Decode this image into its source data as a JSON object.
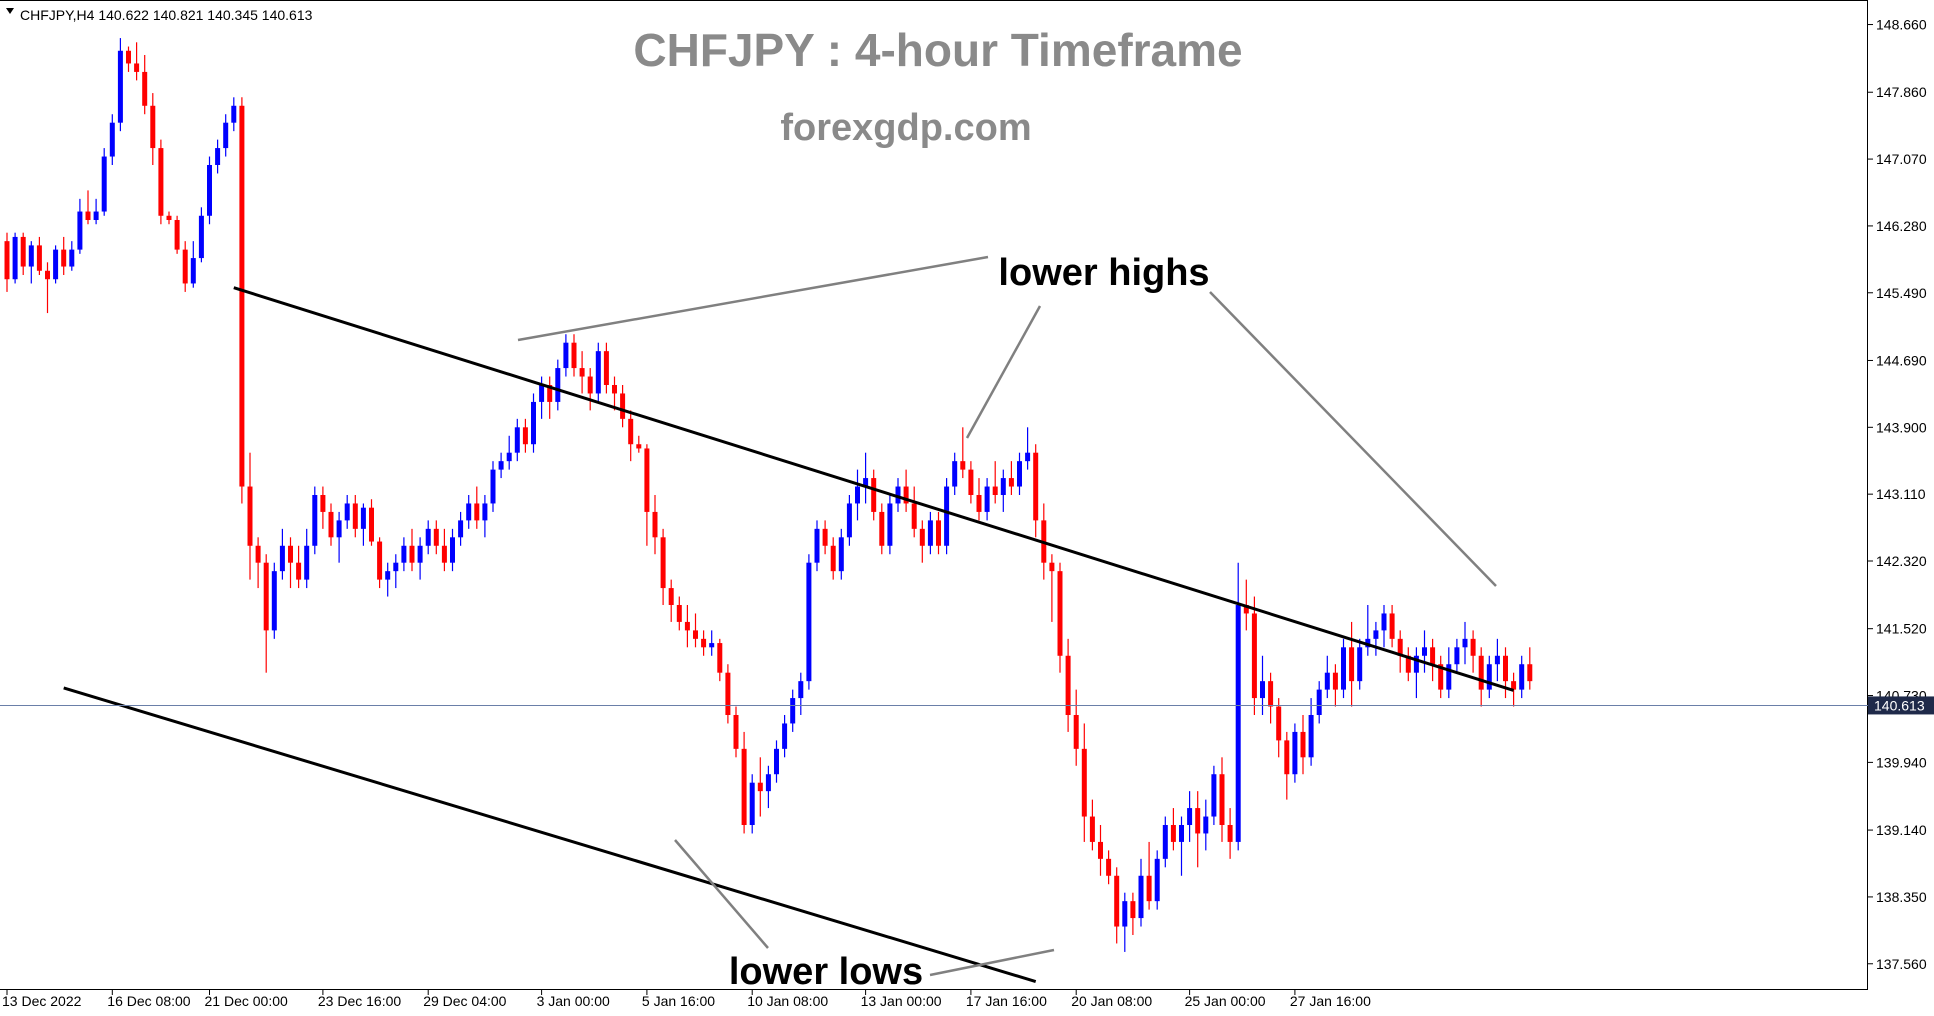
{
  "header": {
    "symbol_info": "CHFJPY,H4  140.622 140.821 140.345 140.613",
    "dropdown_icon": "triangle-down-icon"
  },
  "watermark": {
    "title": "CHFJPY : 4-hour Timeframe",
    "subtitle": "forexgdp.com"
  },
  "annotations": {
    "highs": "lower highs",
    "lows": "lower lows"
  },
  "colors": {
    "bull": "#0000ff",
    "bear": "#ff0000",
    "trendline": "#000000",
    "connector": "#808080",
    "price_line": "#6a7fa8",
    "price_label_bg": "#1f2a4a"
  },
  "chart_data": {
    "type": "candlestick",
    "title": "CHFJPY : 4-hour Timeframe",
    "symbol": "CHFJPY",
    "timeframe": "H4",
    "ylim": [
      137.25,
      148.95
    ],
    "current_price": 140.613,
    "current_price_label": "140.613",
    "y_ticks": [
      "148.660",
      "147.860",
      "147.070",
      "146.280",
      "145.490",
      "144.690",
      "143.900",
      "143.110",
      "142.320",
      "141.520",
      "140.730",
      "139.940",
      "139.140",
      "138.350",
      "137.560"
    ],
    "x_ticks": [
      "13 Dec 2022",
      "16 Dec 08:00",
      "21 Dec 00:00",
      "23 Dec 16:00",
      "29 Dec 04:00",
      "3 Jan 00:00",
      "5 Jan 16:00",
      "10 Jan 08:00",
      "13 Jan 00:00",
      "17 Jan 16:00",
      "20 Jan 08:00",
      "25 Jan 00:00",
      "27 Jan 16:00"
    ],
    "trendlines": [
      {
        "name": "upper",
        "from_bar": 28,
        "from_price": 145.55,
        "to_bar": 186,
        "to_price": 140.79
      },
      {
        "name": "lower",
        "from_bar": 7,
        "from_price": 140.82,
        "to_bar": 127,
        "to_price": 137.35
      }
    ],
    "candles": [
      [
        146.1,
        146.2,
        145.5,
        145.65
      ],
      [
        145.65,
        146.2,
        145.6,
        146.15
      ],
      [
        146.15,
        146.2,
        145.7,
        145.8
      ],
      [
        145.8,
        146.1,
        145.6,
        146.05
      ],
      [
        146.05,
        146.15,
        145.7,
        145.75
      ],
      [
        145.75,
        145.85,
        145.25,
        145.65
      ],
      [
        145.65,
        146.05,
        145.6,
        146.0
      ],
      [
        146.0,
        146.15,
        145.7,
        145.8
      ],
      [
        145.8,
        146.1,
        145.75,
        146.0
      ],
      [
        146.0,
        146.6,
        145.95,
        146.45
      ],
      [
        146.45,
        146.7,
        146.3,
        146.35
      ],
      [
        146.35,
        146.6,
        146.3,
        146.45
      ],
      [
        146.45,
        147.2,
        146.4,
        147.1
      ],
      [
        147.1,
        147.6,
        147.0,
        147.5
      ],
      [
        147.5,
        148.5,
        147.4,
        148.35
      ],
      [
        148.35,
        148.4,
        148.1,
        148.2
      ],
      [
        148.2,
        148.45,
        148.0,
        148.1
      ],
      [
        148.1,
        148.3,
        147.6,
        147.7
      ],
      [
        147.7,
        147.85,
        147.0,
        147.2
      ],
      [
        147.2,
        147.3,
        146.3,
        146.4
      ],
      [
        146.4,
        146.45,
        146.3,
        146.35
      ],
      [
        146.35,
        146.4,
        145.95,
        146.0
      ],
      [
        146.0,
        146.1,
        145.5,
        145.6
      ],
      [
        145.6,
        146.1,
        145.55,
        145.9
      ],
      [
        145.9,
        146.5,
        145.85,
        146.4
      ],
      [
        146.4,
        147.1,
        146.3,
        147.0
      ],
      [
        147.0,
        147.3,
        146.9,
        147.2
      ],
      [
        147.2,
        147.6,
        147.1,
        147.5
      ],
      [
        147.5,
        147.8,
        147.4,
        147.7
      ],
      [
        147.7,
        147.8,
        143.0,
        143.2
      ],
      [
        143.2,
        143.6,
        142.1,
        142.5
      ],
      [
        142.5,
        142.6,
        142.0,
        142.3
      ],
      [
        142.3,
        142.4,
        141.0,
        141.5
      ],
      [
        141.5,
        142.3,
        141.4,
        142.2
      ],
      [
        142.2,
        142.7,
        142.1,
        142.5
      ],
      [
        142.5,
        142.6,
        142.0,
        142.3
      ],
      [
        142.3,
        142.5,
        142.0,
        142.1
      ],
      [
        142.1,
        142.7,
        142.0,
        142.5
      ],
      [
        142.5,
        143.2,
        142.4,
        143.1
      ],
      [
        143.1,
        143.2,
        142.7,
        142.9
      ],
      [
        142.9,
        143.0,
        142.5,
        142.6
      ],
      [
        142.6,
        142.9,
        142.3,
        142.8
      ],
      [
        142.8,
        143.1,
        142.7,
        143.0
      ],
      [
        143.0,
        143.1,
        142.6,
        142.7
      ],
      [
        142.7,
        143.0,
        142.5,
        142.95
      ],
      [
        142.95,
        143.05,
        142.5,
        142.55
      ],
      [
        142.55,
        142.6,
        142.0,
        142.1
      ],
      [
        142.1,
        142.3,
        141.9,
        142.2
      ],
      [
        142.2,
        142.4,
        142.0,
        142.3
      ],
      [
        142.3,
        142.6,
        142.2,
        142.5
      ],
      [
        142.5,
        142.7,
        142.2,
        142.3
      ],
      [
        142.3,
        142.6,
        142.1,
        142.5
      ],
      [
        142.5,
        142.8,
        142.4,
        142.7
      ],
      [
        142.7,
        142.8,
        142.4,
        142.5
      ],
      [
        142.5,
        142.7,
        142.2,
        142.3
      ],
      [
        142.3,
        142.7,
        142.2,
        142.6
      ],
      [
        142.6,
        142.9,
        142.5,
        142.8
      ],
      [
        142.8,
        143.1,
        142.7,
        143.0
      ],
      [
        143.0,
        143.2,
        142.7,
        142.8
      ],
      [
        142.8,
        143.1,
        142.6,
        143.0
      ],
      [
        143.0,
        143.5,
        142.9,
        143.4
      ],
      [
        143.4,
        143.6,
        143.3,
        143.5
      ],
      [
        143.5,
        143.8,
        143.4,
        143.6
      ],
      [
        143.6,
        144.0,
        143.5,
        143.9
      ],
      [
        143.9,
        144.0,
        143.6,
        143.7
      ],
      [
        143.7,
        144.3,
        143.6,
        144.2
      ],
      [
        144.2,
        144.5,
        144.0,
        144.4
      ],
      [
        144.4,
        144.5,
        144.0,
        144.2
      ],
      [
        144.2,
        144.7,
        144.1,
        144.6
      ],
      [
        144.6,
        145.0,
        144.5,
        144.9
      ],
      [
        144.9,
        145.0,
        144.5,
        144.6
      ],
      [
        144.6,
        144.8,
        144.3,
        144.5
      ],
      [
        144.5,
        144.6,
        144.1,
        144.3
      ],
      [
        144.3,
        144.9,
        144.2,
        144.8
      ],
      [
        144.8,
        144.9,
        144.3,
        144.4
      ],
      [
        144.4,
        144.5,
        144.1,
        144.3
      ],
      [
        144.3,
        144.4,
        143.9,
        144.0
      ],
      [
        144.0,
        144.1,
        143.5,
        143.7
      ],
      [
        143.7,
        143.8,
        143.6,
        143.65
      ],
      [
        143.65,
        143.7,
        142.5,
        142.9
      ],
      [
        142.9,
        143.1,
        142.4,
        142.6
      ],
      [
        142.6,
        142.7,
        141.8,
        142.0
      ],
      [
        142.0,
        142.1,
        141.6,
        141.8
      ],
      [
        141.8,
        141.9,
        141.5,
        141.6
      ],
      [
        141.6,
        141.8,
        141.3,
        141.5
      ],
      [
        141.5,
        141.7,
        141.3,
        141.4
      ],
      [
        141.4,
        141.5,
        141.2,
        141.3
      ],
      [
        141.3,
        141.5,
        141.2,
        141.35
      ],
      [
        141.35,
        141.4,
        140.9,
        141.0
      ],
      [
        141.0,
        141.1,
        140.4,
        140.5
      ],
      [
        140.5,
        140.6,
        140.0,
        140.1
      ],
      [
        140.1,
        140.3,
        139.1,
        139.2
      ],
      [
        139.2,
        139.8,
        139.1,
        139.7
      ],
      [
        139.7,
        140.0,
        139.3,
        139.6
      ],
      [
        139.6,
        139.9,
        139.4,
        139.8
      ],
      [
        139.8,
        140.2,
        139.7,
        140.1
      ],
      [
        140.1,
        140.5,
        140.0,
        140.4
      ],
      [
        140.4,
        140.8,
        140.3,
        140.7
      ],
      [
        140.7,
        141.0,
        140.5,
        140.9
      ],
      [
        140.9,
        142.4,
        140.8,
        142.3
      ],
      [
        142.3,
        142.8,
        142.2,
        142.7
      ],
      [
        142.7,
        142.8,
        142.4,
        142.5
      ],
      [
        142.5,
        142.6,
        142.1,
        142.2
      ],
      [
        142.2,
        142.7,
        142.1,
        142.6
      ],
      [
        142.6,
        143.1,
        142.5,
        143.0
      ],
      [
        143.0,
        143.4,
        142.8,
        143.2
      ],
      [
        143.2,
        143.6,
        143.0,
        143.3
      ],
      [
        143.3,
        143.4,
        142.8,
        142.9
      ],
      [
        142.9,
        143.0,
        142.4,
        142.5
      ],
      [
        142.5,
        143.1,
        142.4,
        143.0
      ],
      [
        143.0,
        143.3,
        142.9,
        143.2
      ],
      [
        143.2,
        143.4,
        142.9,
        143.0
      ],
      [
        143.0,
        143.2,
        142.6,
        142.7
      ],
      [
        142.7,
        142.8,
        142.3,
        142.5
      ],
      [
        142.5,
        142.9,
        142.4,
        142.8
      ],
      [
        142.8,
        142.9,
        142.4,
        142.5
      ],
      [
        142.5,
        143.3,
        142.4,
        143.2
      ],
      [
        143.2,
        143.6,
        143.1,
        143.5
      ],
      [
        143.5,
        143.9,
        143.3,
        143.4
      ],
      [
        143.4,
        143.5,
        143.0,
        143.1
      ],
      [
        143.1,
        143.3,
        142.8,
        142.9
      ],
      [
        142.9,
        143.3,
        142.8,
        143.2
      ],
      [
        143.2,
        143.5,
        143.0,
        143.1
      ],
      [
        143.1,
        143.4,
        142.9,
        143.3
      ],
      [
        143.3,
        143.5,
        143.1,
        143.2
      ],
      [
        143.2,
        143.6,
        143.1,
        143.5
      ],
      [
        143.5,
        143.9,
        143.4,
        143.6
      ],
      [
        143.6,
        143.7,
        142.6,
        142.8
      ],
      [
        142.8,
        143.0,
        142.1,
        142.3
      ],
      [
        142.3,
        142.4,
        141.6,
        142.2
      ],
      [
        142.2,
        142.3,
        141.0,
        141.2
      ],
      [
        141.2,
        141.4,
        140.3,
        140.5
      ],
      [
        140.5,
        140.8,
        139.9,
        140.1
      ],
      [
        140.1,
        140.4,
        139.0,
        139.3
      ],
      [
        139.3,
        139.5,
        138.9,
        139.0
      ],
      [
        139.0,
        139.2,
        138.6,
        138.8
      ],
      [
        138.8,
        138.9,
        138.5,
        138.6
      ],
      [
        138.6,
        138.7,
        137.8,
        138.0
      ],
      [
        138.0,
        138.4,
        137.7,
        138.3
      ],
      [
        138.3,
        138.4,
        137.9,
        138.1
      ],
      [
        138.1,
        138.8,
        138.0,
        138.6
      ],
      [
        138.6,
        139.0,
        138.2,
        138.3
      ],
      [
        138.3,
        138.9,
        138.2,
        138.8
      ],
      [
        138.8,
        139.3,
        138.7,
        139.2
      ],
      [
        139.2,
        139.4,
        138.9,
        139.0
      ],
      [
        139.0,
        139.3,
        138.6,
        139.2
      ],
      [
        139.2,
        139.6,
        139.0,
        139.4
      ],
      [
        139.4,
        139.6,
        138.7,
        139.1
      ],
      [
        139.1,
        139.5,
        138.9,
        139.3
      ],
      [
        139.3,
        139.9,
        139.2,
        139.8
      ],
      [
        139.8,
        140.0,
        139.0,
        139.2
      ],
      [
        139.2,
        139.4,
        138.8,
        139.0
      ],
      [
        139.0,
        142.3,
        138.9,
        141.8
      ],
      [
        141.8,
        142.1,
        141.5,
        141.7
      ],
      [
        141.7,
        141.9,
        140.5,
        140.7
      ],
      [
        140.7,
        141.2,
        140.5,
        140.9
      ],
      [
        140.9,
        141.0,
        140.4,
        140.6
      ],
      [
        140.6,
        140.7,
        140.0,
        140.2
      ],
      [
        140.2,
        140.3,
        139.5,
        139.8
      ],
      [
        139.8,
        140.4,
        139.7,
        140.3
      ],
      [
        140.3,
        140.5,
        139.8,
        140.0
      ],
      [
        140.0,
        140.7,
        139.9,
        140.5
      ],
      [
        140.5,
        140.9,
        140.4,
        140.8
      ],
      [
        140.8,
        141.2,
        140.7,
        141.0
      ],
      [
        141.0,
        141.1,
        140.6,
        140.8
      ],
      [
        140.8,
        141.4,
        140.7,
        141.3
      ],
      [
        141.3,
        141.6,
        140.6,
        140.9
      ],
      [
        140.9,
        141.4,
        140.8,
        141.3
      ],
      [
        141.3,
        141.8,
        141.2,
        141.4
      ],
      [
        141.4,
        141.6,
        141.2,
        141.5
      ],
      [
        141.5,
        141.8,
        141.3,
        141.7
      ],
      [
        141.7,
        141.8,
        141.3,
        141.4
      ],
      [
        141.4,
        141.5,
        141.0,
        141.2
      ],
      [
        141.2,
        141.3,
        140.9,
        141.0
      ],
      [
        141.0,
        141.3,
        140.7,
        141.2
      ],
      [
        141.2,
        141.5,
        141.0,
        141.3
      ],
      [
        141.3,
        141.4,
        140.9,
        141.1
      ],
      [
        141.1,
        141.2,
        140.7,
        140.8
      ],
      [
        140.8,
        141.3,
        140.7,
        141.1
      ],
      [
        141.1,
        141.4,
        141.0,
        141.3
      ],
      [
        141.3,
        141.6,
        141.1,
        141.4
      ],
      [
        141.4,
        141.5,
        141.0,
        141.2
      ],
      [
        141.2,
        141.3,
        140.6,
        140.8
      ],
      [
        140.8,
        141.2,
        140.7,
        141.1
      ],
      [
        141.1,
        141.4,
        140.9,
        141.2
      ],
      [
        141.2,
        141.3,
        140.7,
        140.9
      ],
      [
        140.9,
        141.0,
        140.6,
        140.8
      ],
      [
        140.8,
        141.2,
        140.7,
        141.1
      ],
      [
        141.1,
        141.3,
        140.8,
        140.9
      ]
    ]
  }
}
